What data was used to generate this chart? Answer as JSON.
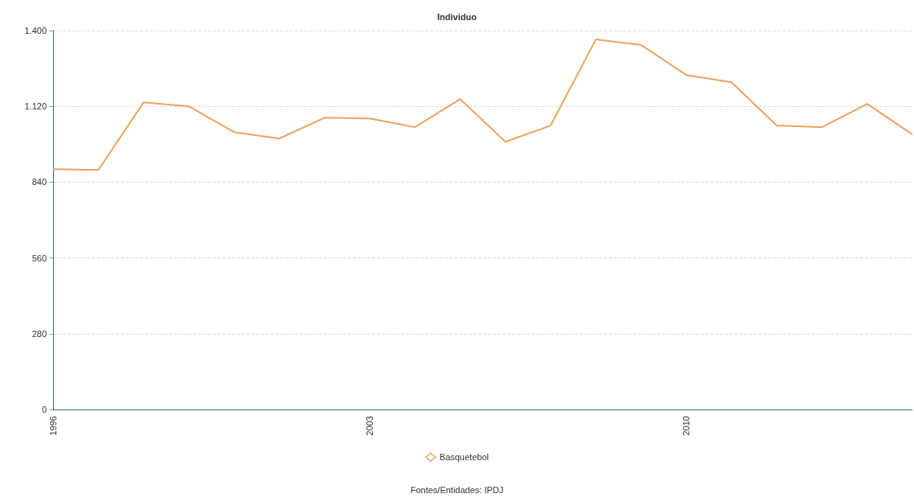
{
  "chart_data": {
    "type": "line",
    "title": "Individuo",
    "categories": [
      "1996",
      null,
      null,
      null,
      null,
      null,
      null,
      "2003",
      null,
      null,
      null,
      null,
      null,
      null,
      "2010",
      null,
      null,
      null,
      null,
      null
    ],
    "series": [
      {
        "name": "Basquetebol",
        "color": "#e8a55f",
        "values": [
          888,
          885,
          1135,
          1120,
          1025,
          1001,
          1078,
          1075,
          1043,
          1147,
          989,
          1049,
          1367,
          1347,
          1236,
          1209,
          1049,
          1043,
          1129,
          1016
        ]
      }
    ],
    "ylim": [
      0,
      1400
    ],
    "yticks": [
      0,
      280,
      560,
      840,
      {
        "value": 1120,
        "label": "1.120"
      },
      {
        "value": 1400,
        "label": "1.400"
      }
    ],
    "grid": "y",
    "legend": "bottom",
    "marker": "none",
    "line_style": "solid",
    "annotations": [
      "Fontes/Entidades: IPDJ"
    ]
  }
}
